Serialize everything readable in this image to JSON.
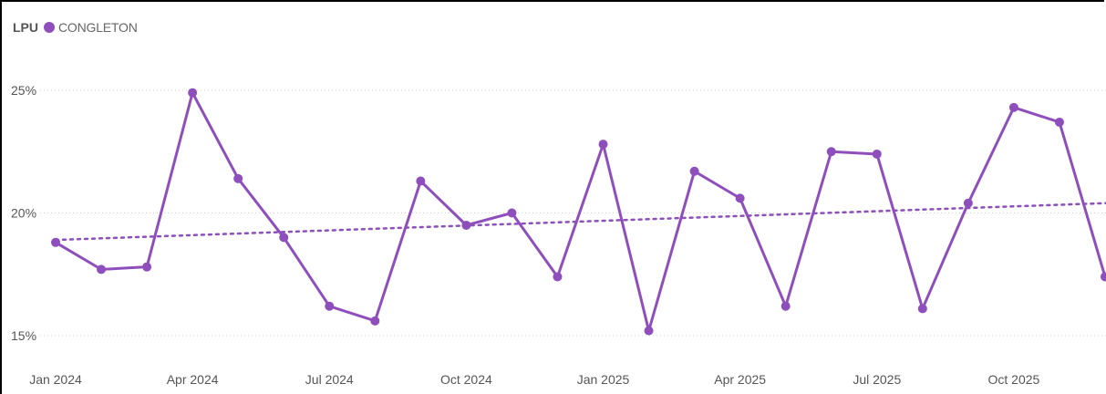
{
  "chart_data": {
    "type": "line",
    "legend": {
      "title": "LPU",
      "position": "top-left"
    },
    "series": [
      {
        "name": "CONGLETON",
        "color": "#8e4fbd",
        "values": [
          18.8,
          17.7,
          17.8,
          24.9,
          21.4,
          19.0,
          16.2,
          15.6,
          21.3,
          19.5,
          20.0,
          17.4,
          22.8,
          15.2,
          21.7,
          20.6,
          16.2,
          22.5,
          22.4,
          16.1,
          20.4,
          24.3,
          23.7,
          17.4
        ]
      }
    ],
    "x": [
      "2024-01",
      "2024-02",
      "2024-03",
      "2024-04",
      "2024-05",
      "2024-06",
      "2024-07",
      "2024-08",
      "2024-09",
      "2024-10",
      "2024-11",
      "2024-12",
      "2025-01",
      "2025-02",
      "2025-03",
      "2025-04",
      "2025-05",
      "2025-06",
      "2025-07",
      "2025-08",
      "2025-09",
      "2025-10",
      "2025-11",
      "2025-12"
    ],
    "x_tick_labels": [
      {
        "x": "2024-01",
        "label": "Jan 2024"
      },
      {
        "x": "2024-04",
        "label": "Apr 2024"
      },
      {
        "x": "2024-07",
        "label": "Jul 2024"
      },
      {
        "x": "2024-10",
        "label": "Oct 2024"
      },
      {
        "x": "2025-01",
        "label": "Jan 2025"
      },
      {
        "x": "2025-04",
        "label": "Apr 2025"
      },
      {
        "x": "2025-07",
        "label": "Jul 2025"
      },
      {
        "x": "2025-10",
        "label": "Oct 2025"
      }
    ],
    "y_ticks": [
      {
        "value": 15,
        "label": "15%"
      },
      {
        "value": 20,
        "label": "20%"
      },
      {
        "value": 25,
        "label": "25%"
      }
    ],
    "ylim": [
      15,
      25
    ],
    "trend": {
      "style": "dotted",
      "start": 18.9,
      "end": 20.4
    },
    "grid": {
      "horizontal": true,
      "style": "dotted",
      "color": "#d0d0d0"
    }
  }
}
